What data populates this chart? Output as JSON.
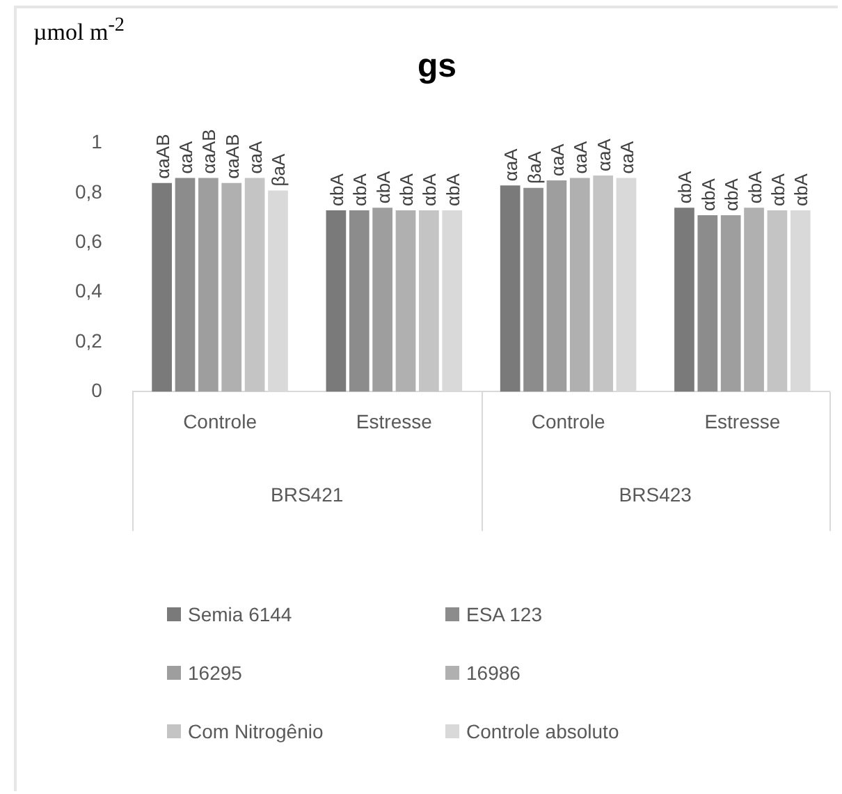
{
  "chart_data": {
    "type": "bar",
    "title": "gs",
    "ylabel": "µmol m$^{-2}$",
    "categories": [
      "Controle",
      "Estresse",
      "Controle",
      "Estresse"
    ],
    "annotations": [
      "BRS421",
      "BRS423"
    ],
    "series": [
      {
        "name": "Semia 6144",
        "color": "#7a7a7a",
        "values": [
          0.84,
          0.73,
          0.83,
          0.74
        ],
        "value_labels": [
          "αaAB",
          "αbA",
          "αaA",
          "αbA"
        ]
      },
      {
        "name": "ESA 123",
        "color": "#8c8c8c",
        "values": [
          0.86,
          0.73,
          0.82,
          0.71
        ],
        "value_labels": [
          "αaA",
          "αbA",
          "βaA",
          "αbA"
        ]
      },
      {
        "name": "16295",
        "color": "#9e9e9e",
        "values": [
          0.86,
          0.74,
          0.85,
          0.71
        ],
        "value_labels": [
          "αaAB",
          "αbA",
          "αaA",
          "αbA"
        ]
      },
      {
        "name": "16986",
        "color": "#b0b0b0",
        "values": [
          0.84,
          0.73,
          0.86,
          0.74
        ],
        "value_labels": [
          "αaAB",
          "αbA",
          "αaA",
          "αbA"
        ]
      },
      {
        "name": "Com Nitrogênio",
        "color": "#c4c4c4",
        "values": [
          0.86,
          0.73,
          0.87,
          0.73
        ],
        "value_labels": [
          "αaA",
          "αbA",
          "αaA",
          "αbA"
        ]
      },
      {
        "name": "Controle absoluto",
        "color": "#d9d9d9",
        "values": [
          0.81,
          0.73,
          0.86,
          0.73
        ],
        "value_labels": [
          "βaA",
          "αbA",
          "αaA",
          "αbA"
        ]
      }
    ],
    "ylim": [
      0,
      1
    ],
    "yticks": [
      0,
      {
        "value": 0.2,
        "label": "0,2"
      },
      {
        "value": 0.4,
        "label": "0,4"
      },
      {
        "value": 0.6,
        "label": "0,6"
      },
      {
        "value": 0.8,
        "label": "0,8"
      },
      1
    ],
    "grid": false,
    "legend": "bottom"
  }
}
